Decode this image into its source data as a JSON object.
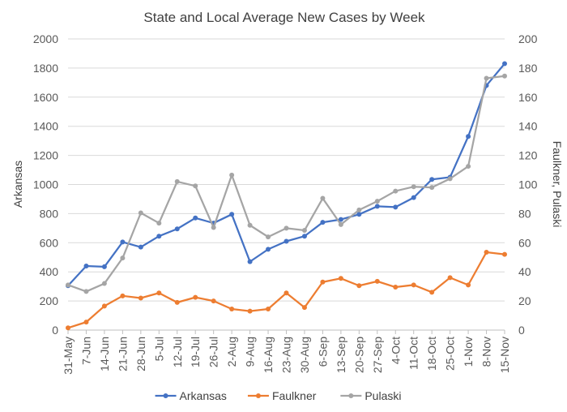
{
  "chart_data": {
    "type": "line",
    "title": "State and Local Average New Cases by Week",
    "ylabel": "Arkansas",
    "y2label": "Faulkner, Pulaski",
    "ylim": [
      0,
      2000
    ],
    "y2lim": [
      0,
      200
    ],
    "yticks": [
      "0",
      "200",
      "400",
      "600",
      "800",
      "1000",
      "1200",
      "1400",
      "1600",
      "1800",
      "2000"
    ],
    "y2ticks": [
      "0",
      "20",
      "40",
      "60",
      "80",
      "100",
      "120",
      "140",
      "160",
      "180",
      "200"
    ],
    "grid": true,
    "legend_position": "bottom",
    "categories": [
      "31-May",
      "7-Jun",
      "14-Jun",
      "21-Jun",
      "28-Jun",
      "5-Jul",
      "12-Jul",
      "19-Jul",
      "26-Jul",
      "2-Aug",
      "9-Aug",
      "16-Aug",
      "23-Aug",
      "30-Aug",
      "6-Sep",
      "13-Sep",
      "20-Sep",
      "27-Sep",
      "4-Oct",
      "11-Oct",
      "18-Oct",
      "25-Oct",
      "1-Nov",
      "8-Nov",
      "15-Nov"
    ],
    "series": [
      {
        "name": "Arkansas",
        "axis": "left",
        "color": "#4472C4",
        "values": [
          305,
          440,
          435,
          605,
          570,
          645,
          695,
          770,
          735,
          795,
          470,
          555,
          610,
          645,
          740,
          760,
          795,
          850,
          845,
          910,
          1035,
          1050,
          1330,
          1680,
          1830
        ]
      },
      {
        "name": "Faulkner",
        "axis": "right",
        "color": "#ED7D31",
        "values": [
          1.5,
          5.5,
          16.5,
          23.5,
          22,
          25.5,
          19,
          22.5,
          20,
          14.5,
          13,
          14.5,
          25.5,
          15.5,
          33,
          35.5,
          30.5,
          33.5,
          29.5,
          31,
          26,
          36,
          31,
          53.5,
          52
        ]
      },
      {
        "name": "Pulaski",
        "axis": "right",
        "color": "#A5A5A5",
        "values": [
          31,
          26.5,
          32,
          49.5,
          80.5,
          73.5,
          102,
          99,
          70.5,
          106.5,
          72,
          64,
          70,
          68.5,
          90.5,
          72.5,
          82.5,
          88.5,
          95.5,
          98.5,
          98,
          104,
          112.5,
          173,
          174.5
        ]
      }
    ]
  }
}
